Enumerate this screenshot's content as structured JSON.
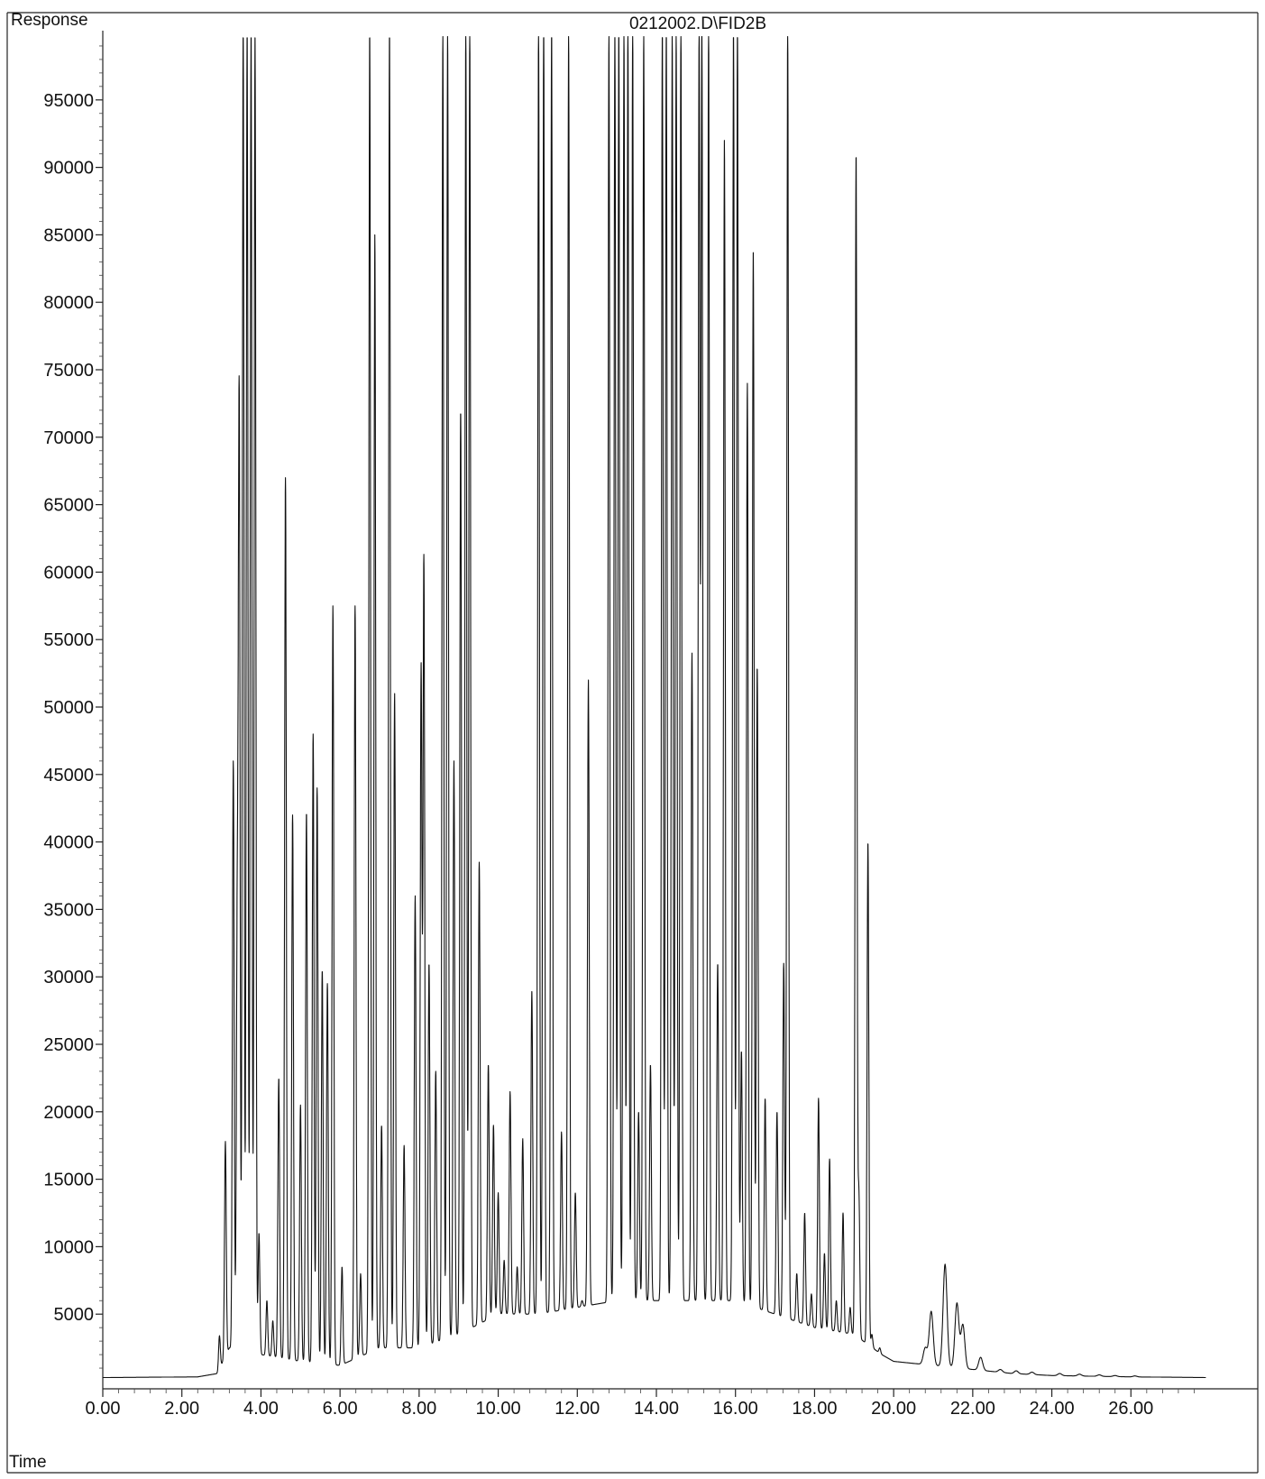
{
  "title": "0212002.D\\FID2B",
  "y_axis_label": "Response",
  "x_axis_label": "Time",
  "chart_data": {
    "type": "line",
    "title": "0212002.D\\FID2B",
    "xlabel": "Time",
    "ylabel": "Response",
    "xlim": [
      0,
      28.0
    ],
    "ylim": [
      0,
      100000
    ],
    "x_ticks": [
      "0.00",
      "2.00",
      "4.00",
      "6.00",
      "8.00",
      "10.00",
      "12.00",
      "14.00",
      "16.00",
      "18.00",
      "20.00",
      "22.00",
      "24.00",
      "26.00"
    ],
    "y_ticks": [
      "5000",
      "10000",
      "15000",
      "20000",
      "25000",
      "30000",
      "35000",
      "40000",
      "45000",
      "50000",
      "55000",
      "60000",
      "65000",
      "70000",
      "75000",
      "80000",
      "85000",
      "90000",
      "95000"
    ],
    "grid": false,
    "series": [
      {
        "baseline": [
          [
            0.0,
            300
          ],
          [
            2.4,
            350
          ],
          [
            2.9,
            600
          ],
          [
            3.2,
            2500
          ],
          [
            4.0,
            2000
          ],
          [
            5.0,
            1500
          ],
          [
            6.0,
            1200
          ],
          [
            7.0,
            2500
          ],
          [
            8.0,
            2500
          ],
          [
            9.0,
            3500
          ],
          [
            10.0,
            5000
          ],
          [
            11.0,
            5000
          ],
          [
            12.0,
            5500
          ],
          [
            13.0,
            6000
          ],
          [
            14.0,
            6000
          ],
          [
            15.0,
            6000
          ],
          [
            16.0,
            6000
          ],
          [
            17.0,
            5000
          ],
          [
            18.0,
            4000
          ],
          [
            19.0,
            3500
          ],
          [
            19.7,
            2000
          ],
          [
            20.0,
            1500
          ],
          [
            21.0,
            1200
          ],
          [
            22.0,
            900
          ],
          [
            23.0,
            600
          ],
          [
            24.0,
            450
          ],
          [
            25.0,
            400
          ],
          [
            26.0,
            350
          ],
          [
            28.0,
            300
          ]
        ],
        "peaks": [
          [
            2.95,
            3400
          ],
          [
            3.1,
            17800
          ],
          [
            3.3,
            46000
          ],
          [
            3.4,
            33000
          ],
          [
            3.45,
            72000
          ],
          [
            3.55,
            100000
          ],
          [
            3.65,
            100000
          ],
          [
            3.75,
            100000
          ],
          [
            3.85,
            100000
          ],
          [
            3.95,
            11000
          ],
          [
            4.15,
            6000
          ],
          [
            4.3,
            4500
          ],
          [
            4.45,
            22500
          ],
          [
            4.62,
            67000
          ],
          [
            4.8,
            42000
          ],
          [
            5.0,
            20500
          ],
          [
            5.15,
            42200
          ],
          [
            5.32,
            48000
          ],
          [
            5.42,
            44000
          ],
          [
            5.55,
            30500
          ],
          [
            5.68,
            29500
          ],
          [
            5.82,
            57500
          ],
          [
            6.05,
            8500
          ],
          [
            6.38,
            57500
          ],
          [
            6.52,
            8000
          ],
          [
            6.75,
            100000
          ],
          [
            6.88,
            85000
          ],
          [
            7.05,
            19000
          ],
          [
            7.25,
            100000
          ],
          [
            7.38,
            51000
          ],
          [
            7.62,
            17500
          ],
          [
            7.9,
            36000
          ],
          [
            8.05,
            53000
          ],
          [
            8.12,
            61000
          ],
          [
            8.25,
            31000
          ],
          [
            8.42,
            23000
          ],
          [
            8.6,
            100000
          ],
          [
            8.72,
            100000
          ],
          [
            8.88,
            46000
          ],
          [
            9.05,
            72000
          ],
          [
            9.18,
            100000
          ],
          [
            9.28,
            100000
          ],
          [
            9.52,
            38500
          ],
          [
            9.75,
            23500
          ],
          [
            9.88,
            19000
          ],
          [
            10.0,
            14000
          ],
          [
            10.15,
            9000
          ],
          [
            10.3,
            21500
          ],
          [
            10.48,
            8500
          ],
          [
            10.62,
            18000
          ],
          [
            10.85,
            29000
          ],
          [
            11.02,
            100000
          ],
          [
            11.15,
            100000
          ],
          [
            11.35,
            100000
          ],
          [
            11.6,
            18500
          ],
          [
            11.78,
            100000
          ],
          [
            11.95,
            14000
          ],
          [
            12.12,
            6000
          ],
          [
            12.28,
            52000
          ],
          [
            12.8,
            100000
          ],
          [
            12.95,
            100000
          ],
          [
            13.05,
            100000
          ],
          [
            13.18,
            100000
          ],
          [
            13.28,
            100000
          ],
          [
            13.4,
            100000
          ],
          [
            13.55,
            20000
          ],
          [
            13.68,
            100000
          ],
          [
            13.85,
            23500
          ],
          [
            14.15,
            100000
          ],
          [
            14.25,
            100000
          ],
          [
            14.4,
            100000
          ],
          [
            14.5,
            100000
          ],
          [
            14.62,
            100000
          ],
          [
            14.9,
            54000
          ],
          [
            15.08,
            100000
          ],
          [
            15.15,
            100000
          ],
          [
            15.32,
            100000
          ],
          [
            15.55,
            31000
          ],
          [
            15.72,
            92000
          ],
          [
            15.95,
            100000
          ],
          [
            16.05,
            100000
          ],
          [
            16.15,
            24500
          ],
          [
            16.3,
            74000
          ],
          [
            16.45,
            84000
          ],
          [
            16.55,
            53000
          ],
          [
            16.75,
            21000
          ],
          [
            17.05,
            20000
          ],
          [
            17.22,
            31000
          ],
          [
            17.32,
            100000
          ],
          [
            17.55,
            8000
          ],
          [
            17.75,
            12500
          ],
          [
            17.92,
            6500
          ],
          [
            18.1,
            21000
          ],
          [
            18.25,
            9500
          ],
          [
            18.38,
            16500
          ],
          [
            18.55,
            6000
          ],
          [
            18.72,
            12500
          ],
          [
            18.9,
            5500
          ],
          [
            19.05,
            91000
          ],
          [
            19.12,
            14000
          ],
          [
            19.35,
            40000
          ],
          [
            19.45,
            3500
          ],
          [
            19.65,
            2500
          ],
          [
            20.4,
            1200
          ],
          [
            20.8,
            2500
          ],
          [
            20.95,
            5200
          ],
          [
            21.3,
            8700
          ],
          [
            21.6,
            5800
          ],
          [
            21.75,
            4200
          ],
          [
            22.2,
            1800
          ],
          [
            22.7,
            900
          ],
          [
            23.1,
            800
          ],
          [
            23.5,
            700
          ],
          [
            24.2,
            600
          ],
          [
            24.7,
            550
          ],
          [
            25.2,
            500
          ],
          [
            25.6,
            450
          ],
          [
            26.1,
            420
          ]
        ]
      }
    ]
  }
}
